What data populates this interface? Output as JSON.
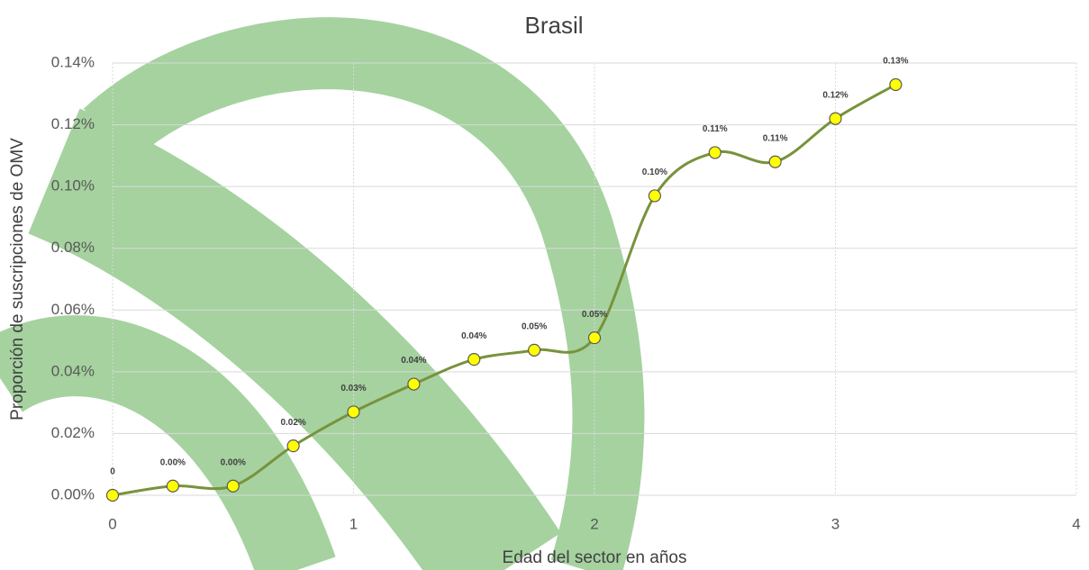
{
  "chart_data": {
    "type": "line",
    "title": "Brasil",
    "x_label": "Edad del sector en años",
    "y_label": "Proporción de suscripciones de OMV",
    "x": [
      0,
      0.25,
      0.5,
      0.75,
      1,
      1.25,
      1.5,
      1.75,
      2,
      2.25,
      2.5,
      2.75,
      3,
      3.25
    ],
    "values": [
      0,
      0.003,
      0.003,
      0.016,
      0.027,
      0.036,
      0.044,
      0.047,
      0.051,
      0.097,
      0.111,
      0.108,
      0.122,
      0.133
    ],
    "value_labels": [
      "0",
      "0.00%",
      "0.00%",
      "0.02%",
      "0.03%",
      "0.04%",
      "0.04%",
      "0.05%",
      "0.05%",
      "0.10%",
      "0.11%",
      "0.11%",
      "0.12%",
      "0.13%"
    ],
    "color": "#77933c",
    "marker_color": "#ffff00",
    "smooth": true,
    "grid": true,
    "xlim": [
      0,
      4
    ],
    "xticks": [
      0,
      1,
      2,
      3,
      4
    ],
    "ylim": [
      0,
      0.14
    ],
    "yticks": [
      {
        "value": 0,
        "label": "0.00%"
      },
      {
        "value": 0.02,
        "label": "0.02%"
      },
      {
        "value": 0.04,
        "label": "0.04%"
      },
      {
        "value": 0.06,
        "label": "0.06%"
      },
      {
        "value": 0.08,
        "label": "0.08%"
      },
      {
        "value": 0.1,
        "label": "0.10%"
      },
      {
        "value": 0.12,
        "label": "0.12%"
      },
      {
        "value": 0.14,
        "label": "0.14%"
      }
    ]
  }
}
